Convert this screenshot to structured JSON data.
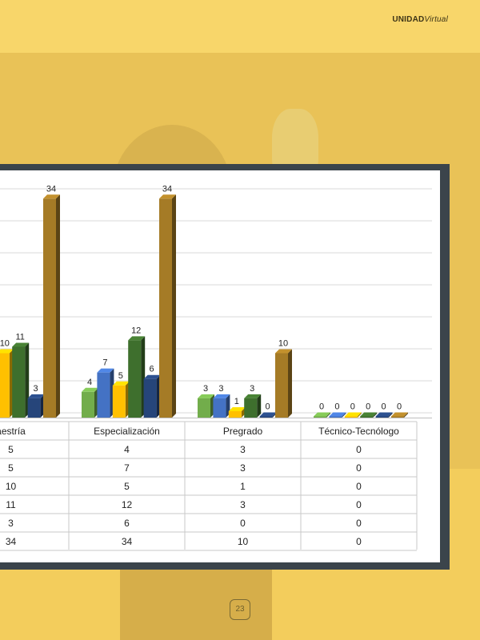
{
  "brand": {
    "bold": "UNIDAD",
    "italic": "Virtual"
  },
  "page_number": "23",
  "chart_data": {
    "type": "bar",
    "categories": [
      "aestría",
      "Especialización",
      "Pregrado",
      "Técnico-Tecnólogo"
    ],
    "series": [
      {
        "values": [
          5,
          4,
          3,
          0
        ],
        "color": "#72ad4b"
      },
      {
        "values": [
          5,
          7,
          3,
          0
        ],
        "color": "#4472c4"
      },
      {
        "values": [
          10,
          5,
          1,
          0
        ],
        "color": "#ffc000"
      },
      {
        "values": [
          11,
          12,
          3,
          0
        ],
        "color": "#3e6f2d"
      },
      {
        "values": [
          3,
          6,
          0,
          0
        ],
        "color": "#26457a"
      },
      {
        "values": [
          34,
          34,
          10,
          0
        ],
        "color": "#a57b26"
      }
    ],
    "table": [
      [
        "5",
        "4",
        "3",
        "0"
      ],
      [
        "5",
        "7",
        "3",
        "0"
      ],
      [
        "10",
        "5",
        "1",
        "0"
      ],
      [
        "11",
        "12",
        "3",
        "0"
      ],
      [
        "3",
        "6",
        "0",
        "0"
      ],
      [
        "34",
        "34",
        "10",
        "0"
      ]
    ],
    "grid": true,
    "legend": "none"
  }
}
